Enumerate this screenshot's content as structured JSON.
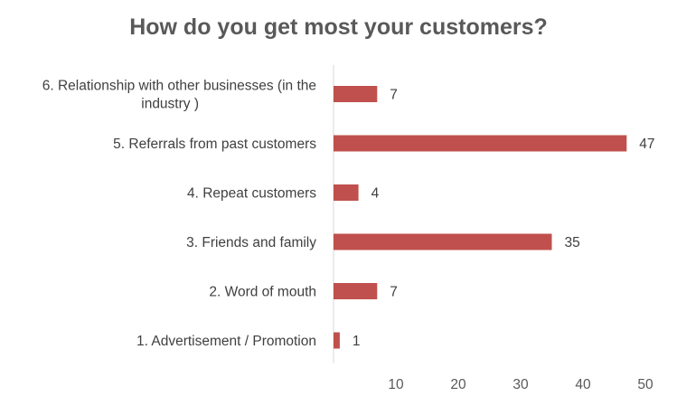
{
  "chart_data": {
    "type": "bar",
    "orientation": "horizontal",
    "title": "How do you get most your customers?",
    "categories": [
      [
        "6. Relationship with other businesses (in the",
        "industry )"
      ],
      [
        "5. Referrals from past customers"
      ],
      [
        "4. Repeat customers"
      ],
      [
        "3. Friends and family"
      ],
      [
        "2. Word of mouth"
      ],
      [
        "1. Advertisement / Promotion"
      ]
    ],
    "values": [
      7,
      47,
      4,
      35,
      7,
      1
    ],
    "xlim": [
      0,
      50
    ],
    "xticks": [
      10,
      20,
      30,
      40,
      50
    ],
    "grid": false,
    "legend": "none",
    "bar_color": "#C0504D"
  }
}
